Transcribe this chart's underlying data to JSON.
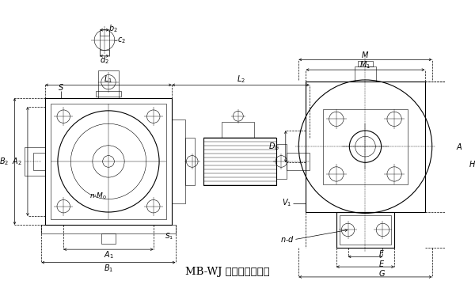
{
  "title": "MB-WJ 组合型变减速器",
  "title_fontsize": 9.5,
  "bg_color": "#ffffff",
  "line_color": "#000000",
  "font_size": 7.0,
  "fig_width": 6.0,
  "fig_height": 3.74,
  "dpi": 100
}
